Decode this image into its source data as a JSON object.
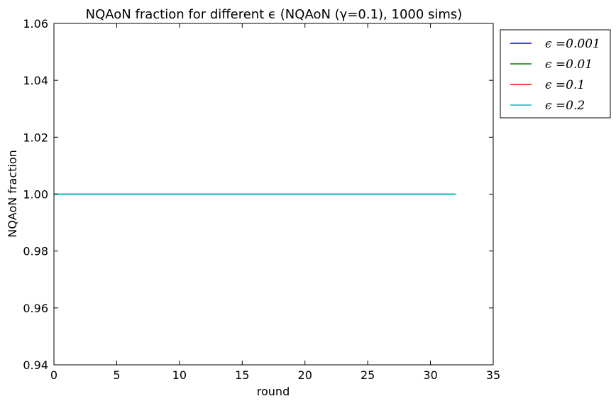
{
  "chart_data": {
    "type": "line",
    "title": "NQAoN fraction for different ϵ (NQAoN (γ=0.1), 1000 sims)",
    "xlabel": "round",
    "ylabel": "NQAoN fraction",
    "xlim": [
      0,
      35
    ],
    "ylim": [
      0.94,
      1.06
    ],
    "xticks": [
      0,
      5,
      10,
      15,
      20,
      25,
      30,
      35
    ],
    "yticks": [
      0.94,
      0.96,
      0.98,
      1.0,
      1.02,
      1.04,
      1.06
    ],
    "xtick_labels": [
      "0",
      "5",
      "10",
      "15",
      "20",
      "25",
      "30",
      "35"
    ],
    "ytick_labels": [
      "0.94",
      "0.96",
      "0.98",
      "1.00",
      "1.02",
      "1.04",
      "1.06"
    ],
    "grid": false,
    "legend_position": "outside-top-right",
    "x": [
      0,
      32
    ],
    "series": [
      {
        "name": "ϵ =0.001",
        "color": "#0000ff",
        "values": [
          1.0,
          1.0
        ]
      },
      {
        "name": "ϵ =0.01",
        "color": "#008000",
        "values": [
          1.0,
          1.0
        ]
      },
      {
        "name": "ϵ =0.1",
        "color": "#ff0000",
        "values": [
          1.0,
          1.0
        ]
      },
      {
        "name": "ϵ =0.2",
        "color": "#00bfbf",
        "values": [
          1.0,
          1.0
        ]
      }
    ]
  }
}
